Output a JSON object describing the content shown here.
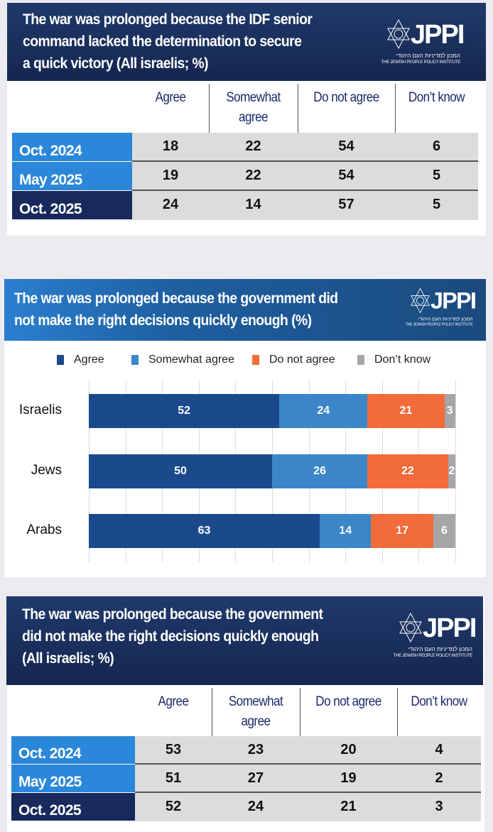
{
  "logo": {
    "name": "JPPI",
    "hebrew": "המכון למדיניות העם היהודי",
    "english": "THE JEWISH PEOPLE POLICY INSTITUTE"
  },
  "table1": {
    "title_lines": [
      "The war was prolonged because the IDF senior",
      "command lacked the determination to secure",
      "a quick victory  (All israelis; %)"
    ],
    "columns": [
      "Agree",
      "Somewhat agree",
      "Do not agree",
      "Don’t know"
    ],
    "rows": [
      {
        "label": "Oct. 2024",
        "values": [
          "18",
          "22",
          "54",
          "6"
        ],
        "color": "#2a87d9"
      },
      {
        "label": "May 2025",
        "values": [
          "19",
          "22",
          "54",
          "5"
        ],
        "color": "#2a87d9"
      },
      {
        "label": "Oct. 2025",
        "values": [
          "24",
          "14",
          "57",
          "5"
        ],
        "color": "#182a5c"
      }
    ]
  },
  "chart_data": {
    "type": "bar",
    "orientation": "horizontal-stacked",
    "title": "The war was prolonged because the government did not make the right decisions quickly enough (%)",
    "title_lines": [
      "The war was prolonged because the government did",
      "not make the right decisions quickly enough (%)"
    ],
    "categories": [
      "Israelis",
      "Jews",
      "Arabs"
    ],
    "series": [
      {
        "name": "Agree",
        "values": [
          52,
          50,
          63
        ],
        "color": "#1a4a8c"
      },
      {
        "name": "Somewhat agree",
        "values": [
          24,
          26,
          14
        ],
        "color": "#3a86c8"
      },
      {
        "name": "Do not agree",
        "values": [
          21,
          22,
          17
        ],
        "color": "#f26b3a"
      },
      {
        "name": "Don’t know",
        "values": [
          3,
          2,
          6
        ],
        "color": "#a6a6a6"
      }
    ],
    "xlim": [
      0,
      100
    ],
    "grid": true,
    "legend": "top"
  },
  "table3": {
    "title_lines": [
      "The war was prolonged because the government",
      "did not make the right decisions quickly enough",
      "(All israelis; %)"
    ],
    "columns": [
      "Agree",
      "Somewhat agree",
      "Do not agree",
      "Don’t know"
    ],
    "rows": [
      {
        "label": "Oct. 2024",
        "values": [
          "53",
          "23",
          "20",
          "4"
        ],
        "color": "#2a87d9"
      },
      {
        "label": "May 2025",
        "values": [
          "51",
          "27",
          "19",
          "2"
        ],
        "color": "#2a87d9"
      },
      {
        "label": "Oct. 2025",
        "values": [
          "52",
          "24",
          "21",
          "3"
        ],
        "color": "#182a5c"
      }
    ]
  }
}
